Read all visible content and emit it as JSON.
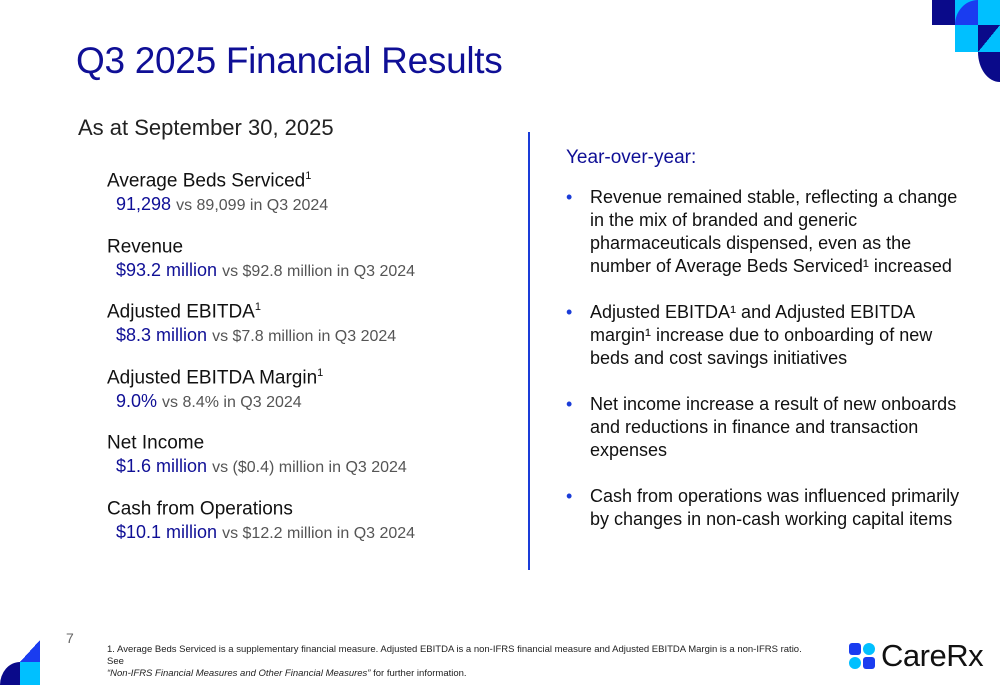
{
  "title": "Q3 2025 Financial Results",
  "as_at": "As at September 30, 2025",
  "metrics": [
    {
      "label": "Average Beds Serviced",
      "sup": "1",
      "value": "91,298",
      "comparison": "vs 89,099 in Q3 2024"
    },
    {
      "label": "Revenue",
      "sup": "",
      "value": "$93.2 million",
      "comparison": "vs $92.8 million in Q3 2024"
    },
    {
      "label": "Adjusted EBITDA",
      "sup": "1",
      "value": "$8.3 million",
      "comparison": "vs $7.8 million in Q3 2024"
    },
    {
      "label": "Adjusted EBITDA Margin",
      "sup": "1",
      "value": "9.0%",
      "comparison": "vs 8.4% in Q3 2024"
    },
    {
      "label": "Net Income",
      "sup": "",
      "value": "$1.6 million",
      "comparison": "vs ($0.4) million in Q3 2024"
    },
    {
      "label": "Cash from Operations",
      "sup": "",
      "value": "$10.1 million",
      "comparison": "vs $12.2 million in Q3 2024"
    }
  ],
  "yoy_heading": "Year-over-year:",
  "bullets": [
    "Revenue remained stable, reflecting a change in the mix of branded and generic pharmaceuticals dispensed, even as the number of Average Beds Serviced¹ increased",
    "Adjusted EBITDA¹ and Adjusted EBITDA margin¹ increase due to onboarding of new beds and cost savings initiatives",
    "Net income increase a result of new onboards and reductions in finance and transaction expenses",
    "Cash from operations was influenced primarily by changes in non-cash working capital items"
  ],
  "bullet_glyph": "•",
  "page_number": "7",
  "footnote": {
    "text": "1.  Average Beds Serviced is a supplementary financial measure. Adjusted EBITDA is a non-IFRS financial measure and Adjusted EBITDA Margin is a non-IFRS ratio. See",
    "italic": "“Non-IFRS Financial Measures and Other Financial Measures”",
    "tail": " for further information."
  },
  "logo_text": "CareRx",
  "colors": {
    "navy": "#0f0f96",
    "blue": "#1a3cd8",
    "cyan": "#00c0ff",
    "dark": "#0a0a8a"
  }
}
